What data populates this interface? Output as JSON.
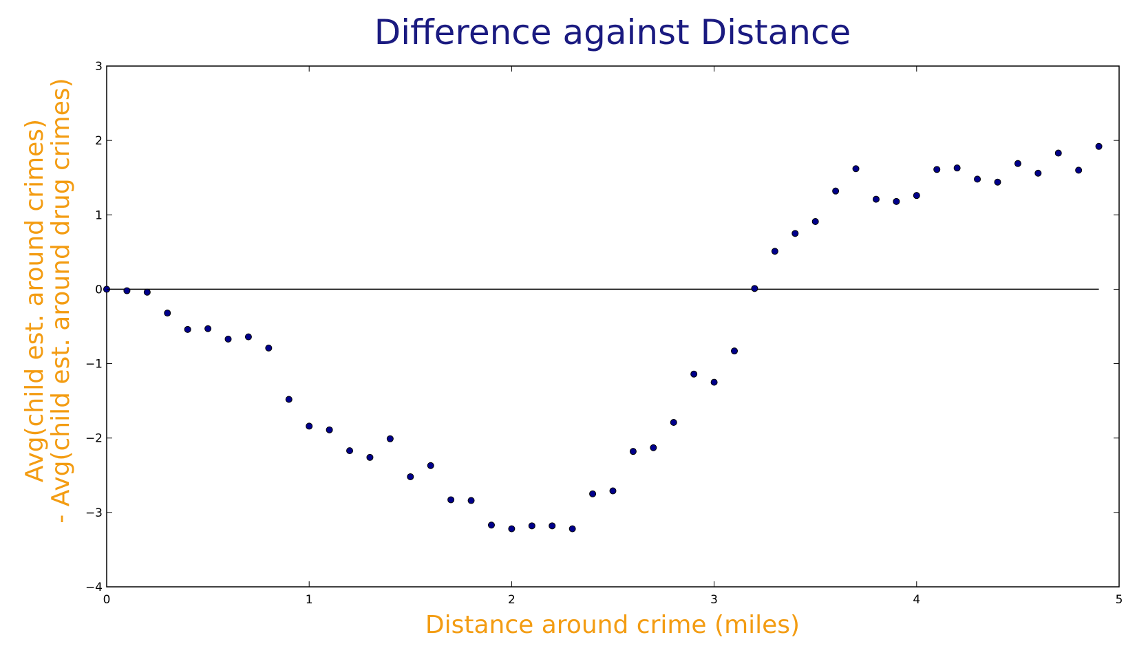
{
  "colors": {
    "title": "#1a1a80",
    "axis_label": "#f39c12",
    "point_fill": "#00008b",
    "point_stroke": "#000000",
    "frame": "#000000",
    "zero_line": "#000000"
  },
  "chart_data": {
    "type": "scatter",
    "title": "Difference against Distance",
    "xlabel": "Distance around crime (miles)",
    "ylabel_lines": [
      "Avg(child est. around crimes)",
      "- Avg(child est. around drug crimes)"
    ],
    "xlim": [
      0,
      5
    ],
    "ylim": [
      -4,
      3
    ],
    "xticks": [
      0,
      1,
      2,
      3,
      4,
      5
    ],
    "xtick_labels": [
      "0",
      "1",
      "2",
      "3",
      "4",
      "5"
    ],
    "yticks": [
      3,
      2,
      1,
      0,
      -1,
      -2,
      -3,
      -4
    ],
    "ytick_labels": [
      "3",
      "2",
      "1",
      "0",
      "−1",
      "−2",
      "−3",
      "−4"
    ],
    "grid": false,
    "legend": "none",
    "reference_line": {
      "y": 0,
      "x_start": 0,
      "x_end": 4.9
    },
    "x": [
      0,
      0.1,
      0.2,
      0.3,
      0.4,
      0.5,
      0.6,
      0.7,
      0.8,
      0.9,
      1.0,
      1.1,
      1.2,
      1.3,
      1.4,
      1.5,
      1.6,
      1.7,
      1.8,
      1.9,
      2.0,
      2.1,
      2.2,
      2.3,
      2.4,
      2.5,
      2.6,
      2.7,
      2.8,
      2.9,
      3.0,
      3.1,
      3.2,
      3.3,
      3.4,
      3.5,
      3.6,
      3.7,
      3.8,
      3.9,
      4.0,
      4.1,
      4.2,
      4.3,
      4.4,
      4.5,
      4.6,
      4.7,
      4.8,
      4.9
    ],
    "y": [
      0.0,
      -0.02,
      -0.04,
      -0.32,
      -0.54,
      -0.53,
      -0.67,
      -0.64,
      -0.79,
      -1.48,
      -1.84,
      -1.89,
      -2.17,
      -2.26,
      -2.01,
      -2.52,
      -2.37,
      -2.83,
      -2.84,
      -3.17,
      -3.22,
      -3.18,
      -3.18,
      -3.22,
      -2.75,
      -2.71,
      -2.18,
      -2.13,
      -1.79,
      -1.14,
      -1.25,
      -0.83,
      0.01,
      0.51,
      0.75,
      0.91,
      1.32,
      1.62,
      1.21,
      1.18,
      1.26,
      1.61,
      1.63,
      1.48,
      1.44,
      1.69,
      1.56,
      1.83,
      1.6,
      1.92
    ]
  }
}
